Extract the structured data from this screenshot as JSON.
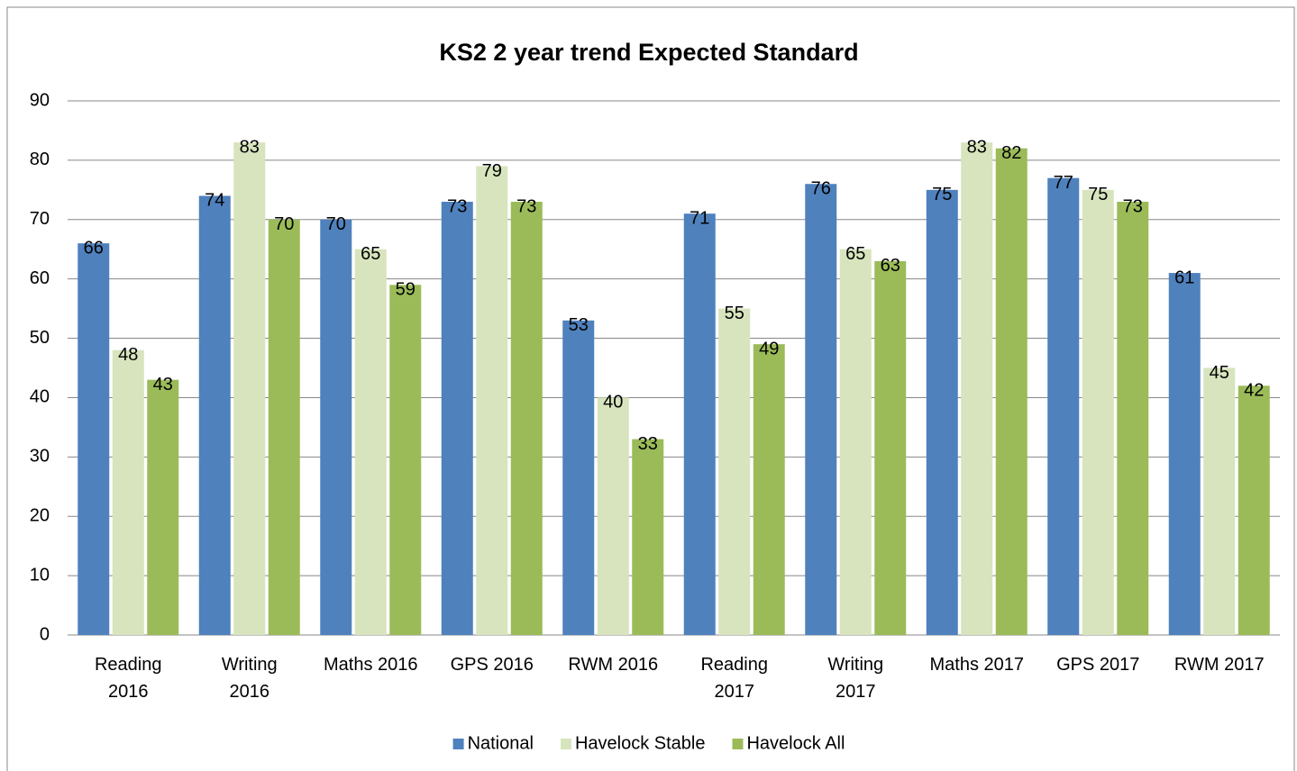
{
  "chart_data": {
    "type": "bar",
    "title": "KS2 2 year trend Expected Standard",
    "categories": [
      "Reading 2016",
      "Writing 2016",
      "Maths 2016",
      "GPS 2016",
      "RWM 2016",
      "Reading 2017",
      "Writing 2017",
      "Maths 2017",
      "GPS 2017",
      "RWM 2017"
    ],
    "series": [
      {
        "name": "National",
        "color": "#4f81bd",
        "values": [
          66,
          74,
          70,
          73,
          53,
          71,
          76,
          75,
          77,
          61
        ]
      },
      {
        "name": "Havelock Stable",
        "color": "#d7e4bd",
        "values": [
          48,
          83,
          65,
          79,
          40,
          55,
          65,
          83,
          75,
          45
        ]
      },
      {
        "name": "Havelock All",
        "color": "#9bbb59",
        "values": [
          43,
          70,
          59,
          73,
          33,
          49,
          63,
          82,
          73,
          42
        ]
      }
    ],
    "ylim": [
      0,
      90
    ],
    "yticks": [
      0,
      10,
      20,
      30,
      40,
      50,
      60,
      70,
      80,
      90
    ],
    "grid": true,
    "legend": "bottom"
  }
}
